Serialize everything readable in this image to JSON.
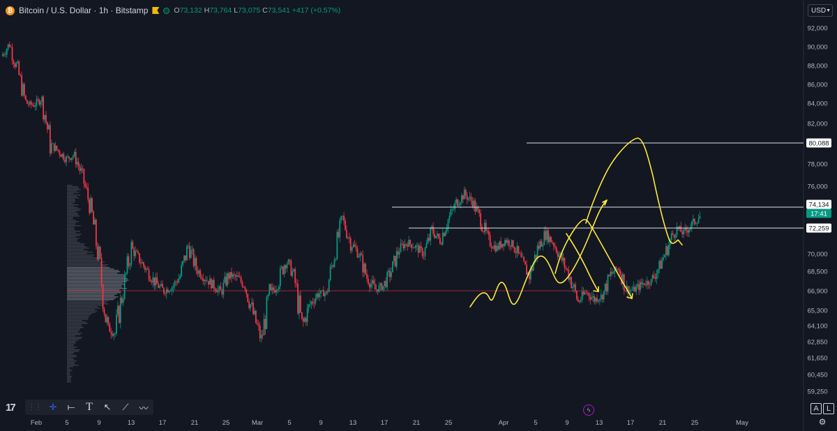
{
  "header": {
    "symbol": "Bitcoin / U.S. Dollar · 1h · Bitstamp",
    "icons": [
      "bitcoin-icon",
      "flag-icon",
      "market-status-icon"
    ],
    "ohlc": {
      "o_label": "O",
      "o": "73,132",
      "h_label": "H",
      "h": "73,764",
      "l_label": "L",
      "l": "73,075",
      "c_label": "C",
      "c": "73,541",
      "change": "+417 (+0.57%)"
    }
  },
  "currency": {
    "label": "USD"
  },
  "colors": {
    "bg": "#131722",
    "up": "#089981",
    "down": "#f23645",
    "drawing": "#ffeb3b",
    "line": "#e0e3eb",
    "accent": "#2962ff"
  },
  "price_axis": {
    "labels": [
      "92,000",
      "90,000",
      "88,000",
      "86,000",
      "84,000",
      "82,000",
      "78,000",
      "76,000",
      "70,000",
      "68,500",
      "66,900",
      "65,300",
      "64,100",
      "62,850",
      "61,650",
      "60,450",
      "59,250"
    ],
    "badges": [
      {
        "text": "80,088"
      },
      {
        "text": "74,134"
      },
      {
        "text": "17:41"
      },
      {
        "text": "72,259"
      }
    ]
  },
  "time_axis": {
    "labels": [
      "Feb",
      "5",
      "9",
      "13",
      "17",
      "21",
      "25",
      "Mar",
      "5",
      "9",
      "13",
      "17",
      "21",
      "25",
      "Apr",
      "5",
      "9",
      "13",
      "17",
      "21",
      "25",
      "May"
    ]
  },
  "chart_data": {
    "type": "candlestick",
    "x_range": [
      "Jan 31",
      "May 4"
    ],
    "ylim": [
      58800,
      92800
    ],
    "price_path": [
      [
        0,
        89000
      ],
      [
        1,
        90300
      ],
      [
        2,
        87500
      ],
      [
        3,
        84000
      ],
      [
        4,
        83800
      ],
      [
        5,
        84500
      ],
      [
        6,
        80000
      ],
      [
        7,
        79300
      ],
      [
        8,
        78500
      ],
      [
        9,
        78900
      ],
      [
        10,
        76800
      ],
      [
        11,
        74000
      ],
      [
        12,
        69500
      ],
      [
        13,
        64000
      ],
      [
        14,
        63500
      ],
      [
        15,
        67000
      ],
      [
        16,
        70500
      ],
      [
        17,
        69500
      ],
      [
        18,
        68500
      ],
      [
        19,
        67500
      ],
      [
        20,
        66900
      ],
      [
        21,
        67200
      ],
      [
        22,
        68100
      ],
      [
        23,
        70700
      ],
      [
        24,
        68700
      ],
      [
        25,
        68000
      ],
      [
        26,
        67400
      ],
      [
        27,
        66800
      ],
      [
        28,
        68200
      ],
      [
        29,
        68000
      ],
      [
        30,
        67300
      ],
      [
        31,
        65000
      ],
      [
        32,
        63000
      ],
      [
        33,
        66500
      ],
      [
        34,
        67500
      ],
      [
        35,
        69500
      ],
      [
        36,
        68200
      ],
      [
        37,
        64000
      ],
      [
        38,
        65800
      ],
      [
        39,
        66700
      ],
      [
        40,
        66700
      ],
      [
        41,
        70000
      ],
      [
        42,
        73000
      ],
      [
        43,
        71000
      ],
      [
        44,
        70000
      ],
      [
        45,
        68000
      ],
      [
        46,
        67000
      ],
      [
        47,
        67300
      ],
      [
        48,
        68500
      ],
      [
        49,
        70500
      ],
      [
        50,
        71000
      ],
      [
        51,
        70600
      ],
      [
        52,
        70000
      ],
      [
        53,
        72000
      ],
      [
        54,
        71200
      ],
      [
        55,
        73000
      ],
      [
        56,
        74500
      ],
      [
        57,
        75300
      ],
      [
        58,
        74600
      ],
      [
        59,
        73000
      ],
      [
        60,
        71000
      ],
      [
        61,
        70500
      ],
      [
        62,
        71200
      ],
      [
        63,
        70800
      ],
      [
        64,
        69400
      ],
      [
        65,
        68100
      ],
      [
        66,
        70400
      ],
      [
        67,
        71800
      ],
      [
        68,
        70900
      ],
      [
        69,
        69500
      ],
      [
        70,
        68000
      ],
      [
        71,
        66000
      ],
      [
        72,
        66800
      ],
      [
        73,
        66200
      ],
      [
        74,
        66500
      ],
      [
        75,
        68200
      ],
      [
        76,
        68800
      ],
      [
        77,
        66900
      ],
      [
        78,
        67000
      ],
      [
        79,
        67500
      ],
      [
        80,
        67700
      ],
      [
        81,
        68900
      ],
      [
        82,
        70500
      ],
      [
        83,
        72300
      ],
      [
        84,
        71800
      ],
      [
        85,
        72600
      ],
      [
        86,
        73300
      ]
    ],
    "volume_profile_poc": 66900,
    "horizontal_levels": [
      80088,
      74134,
      72259
    ],
    "poc_line": 66900,
    "last_price": 73541,
    "countdown": "17:41",
    "drawings": "hand-drawn yellow projection curves"
  }
}
